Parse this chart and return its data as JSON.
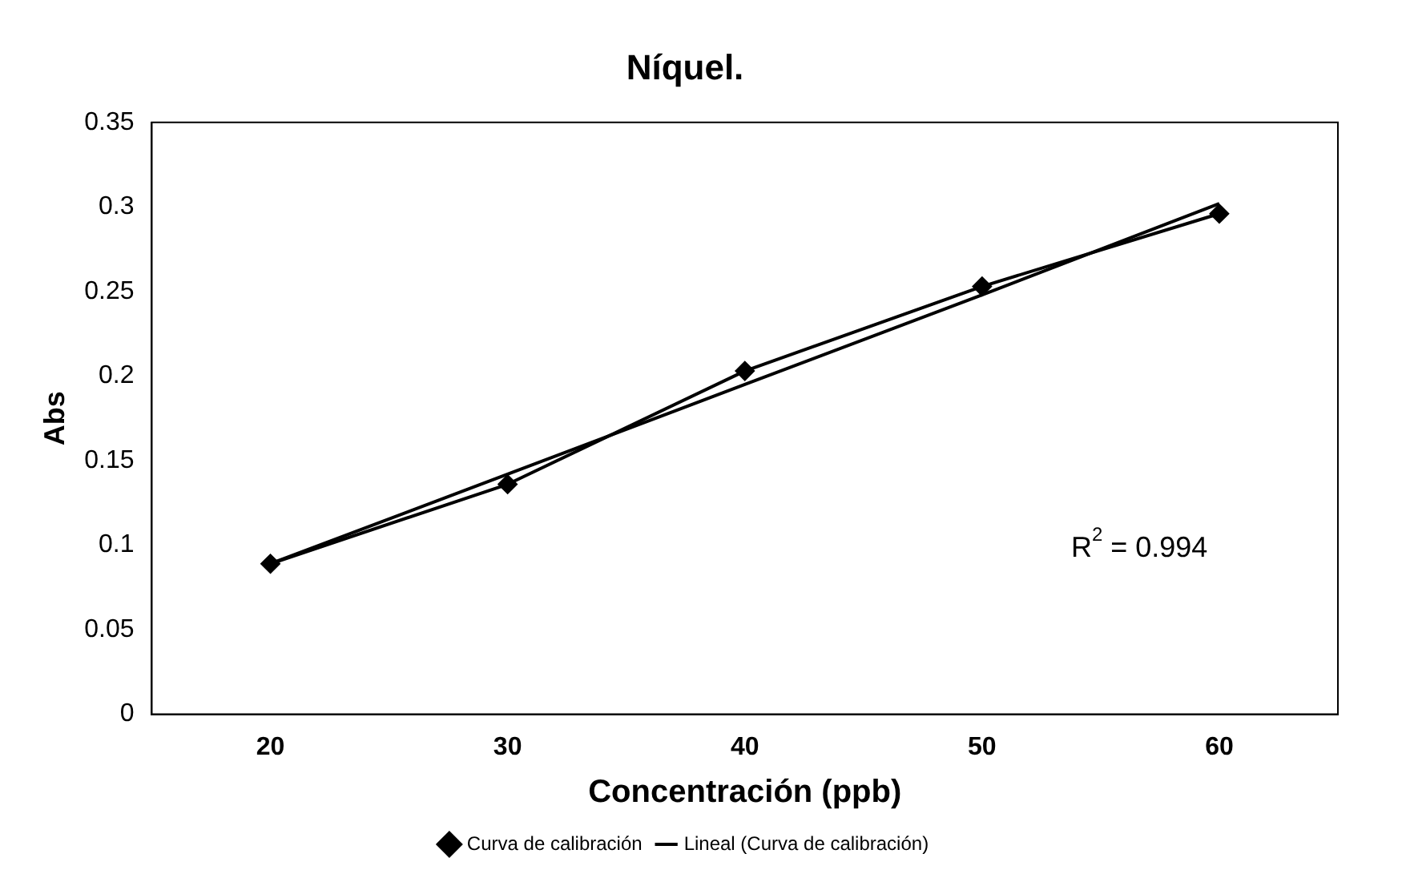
{
  "chart_data": {
    "type": "line",
    "title": "Níquel.",
    "xlabel": "Concentración (ppb)",
    "ylabel": "Abs",
    "categories": [
      "20",
      "30",
      "40",
      "50",
      "60"
    ],
    "series": [
      {
        "name": "Curva de calibración",
        "color": "#000000",
        "values": [
          0.089,
          0.136,
          0.203,
          0.253,
          0.296
        ],
        "marker": "diamond"
      },
      {
        "name": "Lineal (Curva de calibración)",
        "color": "#000000",
        "values": [
          0.089,
          0.142,
          0.195,
          0.248,
          0.302
        ],
        "marker": "none"
      }
    ],
    "ylim": [
      0,
      0.35
    ],
    "yticks": [
      0,
      0.05,
      0.1,
      0.15,
      0.2,
      0.25,
      0.3,
      0.35
    ],
    "grid": false,
    "legend": "bottom",
    "line_style": "solid",
    "annotations": [
      "R$^{2}$ = 0.994"
    ]
  }
}
